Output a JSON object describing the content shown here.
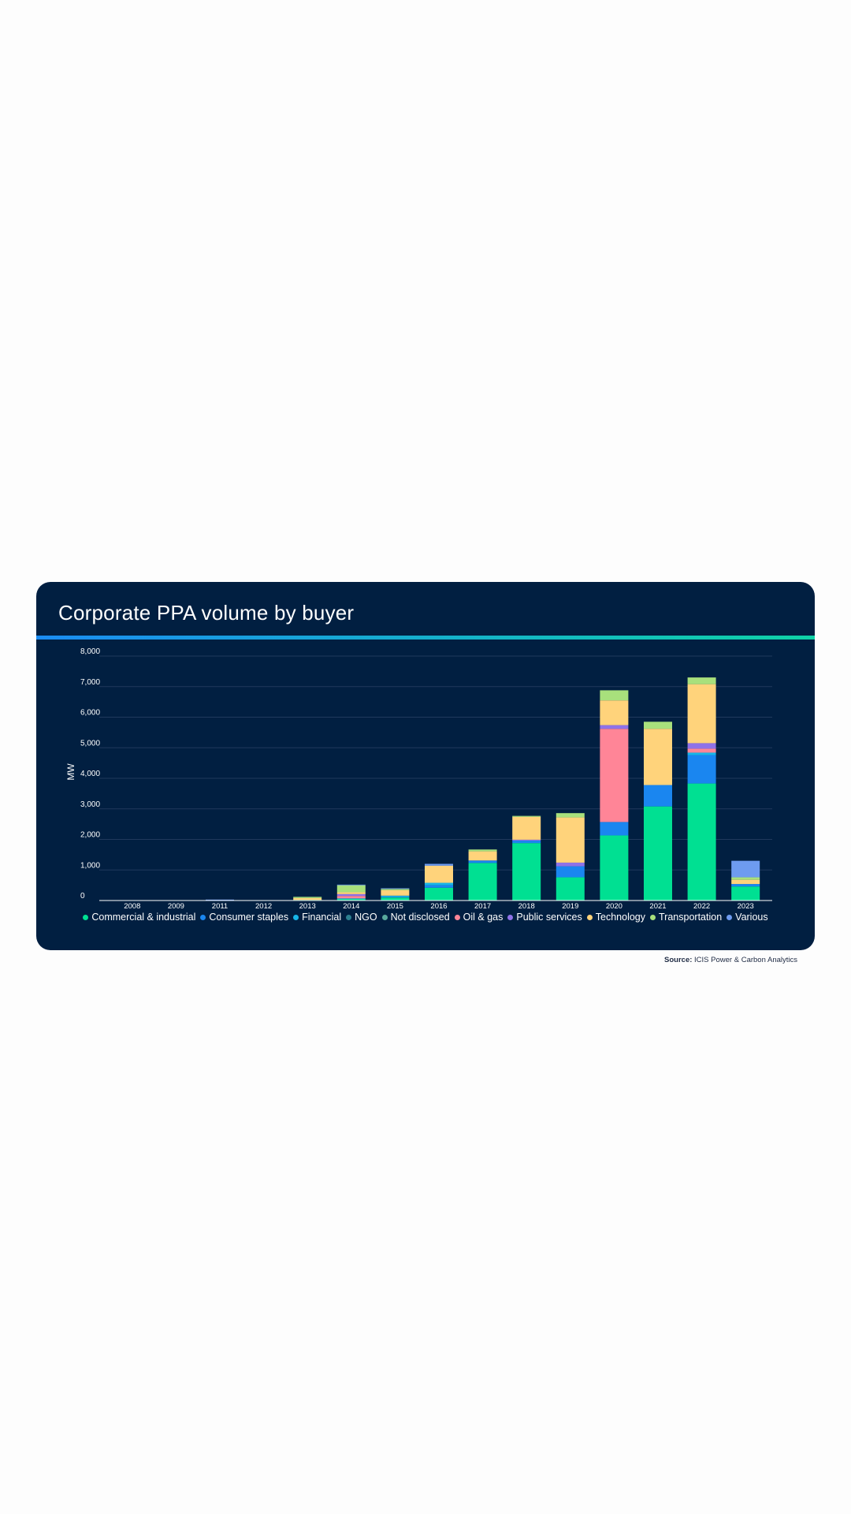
{
  "source": {
    "label": "Source:",
    "text": "ICIS Power & Carbon Analytics"
  },
  "chart_data": {
    "type": "bar",
    "stacked": true,
    "title": "Corporate PPA volume by buyer",
    "xlabel": "",
    "ylabel": "MW",
    "ylim": [
      0,
      8000
    ],
    "yticks": [
      0,
      1000,
      2000,
      3000,
      4000,
      5000,
      6000,
      7000,
      8000
    ],
    "ytick_labels": [
      "0",
      "1,000",
      "2,000",
      "3,000",
      "4,000",
      "5,000",
      "6,000",
      "7,000",
      "8,000"
    ],
    "grid": true,
    "legend_position": "bottom",
    "categories": [
      "2008",
      "2009",
      "2011",
      "2012",
      "2013",
      "2014",
      "2015",
      "2016",
      "2017",
      "2018",
      "2019",
      "2020",
      "2021",
      "2022",
      "2023"
    ],
    "series": [
      {
        "name": "Commercial & industrial",
        "color": "#00e092",
        "values": [
          0,
          0,
          10,
          0,
          20,
          50,
          100,
          420,
          1230,
          1880,
          760,
          2130,
          3080,
          3830,
          460
        ]
      },
      {
        "name": "Consumer staples",
        "color": "#1a86f0",
        "values": [
          0,
          0,
          0,
          0,
          0,
          0,
          20,
          80,
          80,
          80,
          360,
          440,
          700,
          930,
          80
        ]
      },
      {
        "name": "Financial",
        "color": "#17b6e8",
        "values": [
          0,
          0,
          0,
          0,
          0,
          20,
          40,
          80,
          0,
          0,
          0,
          0,
          0,
          80,
          0
        ]
      },
      {
        "name": "NGO",
        "color": "#2c7f8f",
        "values": [
          0,
          0,
          0,
          0,
          0,
          0,
          0,
          0,
          0,
          0,
          0,
          0,
          0,
          0,
          0
        ]
      },
      {
        "name": "Not disclosed",
        "color": "#58a89c",
        "values": [
          0,
          0,
          0,
          0,
          0,
          0,
          0,
          0,
          0,
          0,
          0,
          0,
          0,
          0,
          0
        ]
      },
      {
        "name": "Oil & gas",
        "color": "#ff8597",
        "values": [
          0,
          0,
          0,
          0,
          0,
          80,
          0,
          0,
          0,
          0,
          0,
          3050,
          0,
          130,
          0
        ]
      },
      {
        "name": "Public services",
        "color": "#8f72e8",
        "values": [
          0,
          0,
          0,
          0,
          0,
          60,
          0,
          0,
          0,
          30,
          120,
          120,
          0,
          180,
          0
        ]
      },
      {
        "name": "Technology",
        "color": "#ffd37b",
        "values": [
          0,
          0,
          0,
          0,
          60,
          60,
          180,
          560,
          300,
          750,
          1480,
          810,
          1840,
          1930,
          140
        ]
      },
      {
        "name": "Transportation",
        "color": "#a8e07c",
        "values": [
          0,
          0,
          0,
          0,
          40,
          230,
          40,
          0,
          60,
          30,
          140,
          330,
          230,
          220,
          80
        ]
      },
      {
        "name": "Various",
        "color": "#6e9bf0",
        "values": [
          0,
          0,
          20,
          0,
          0,
          20,
          20,
          60,
          0,
          0,
          0,
          0,
          0,
          0,
          540
        ]
      }
    ]
  }
}
